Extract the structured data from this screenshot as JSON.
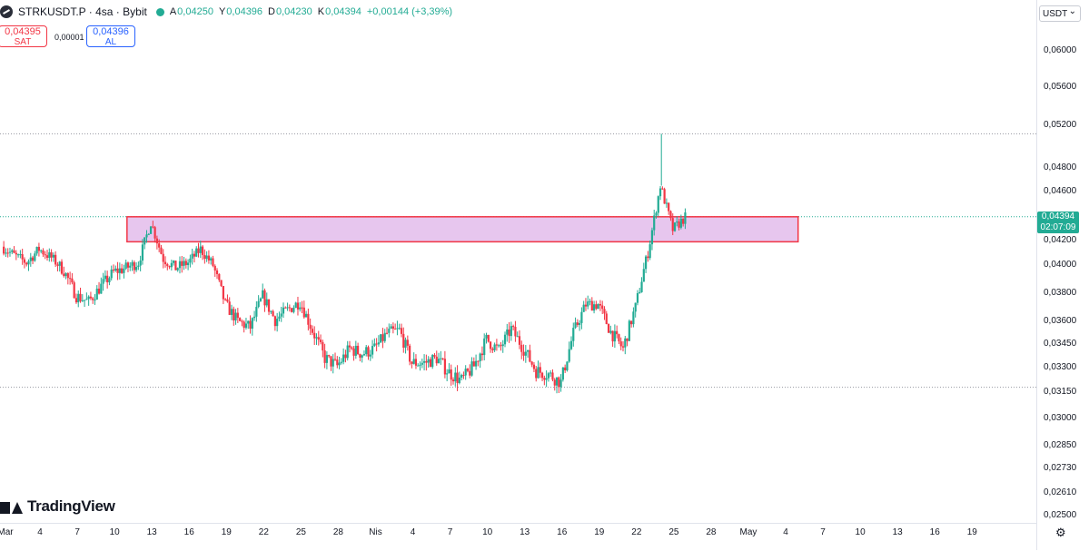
{
  "legend": {
    "symbol": "STRKUSDT.P · 4sa · Bybit",
    "open_label": "A",
    "open": "0,04250",
    "high_label": "Y",
    "high": "0,04396",
    "low_label": "D",
    "low": "0,04230",
    "close_label": "K",
    "close": "0,04394",
    "change": "+0,00144 (+3,39%)"
  },
  "trade": {
    "sell_price": "0,04395",
    "sell_label": "SAT",
    "spread": "0,00001",
    "buy_price": "0,04396",
    "buy_label": "AL"
  },
  "currency": "USDT",
  "last_price": {
    "value": "0,04394",
    "countdown": "02:07:09"
  },
  "branding": "TradingView",
  "colors": {
    "up": "#22ab94",
    "down": "#f23645",
    "zone_fill": "#e7c6ee",
    "zone_border": "#f23645"
  },
  "chart_data": {
    "type": "candlestick",
    "price_scale": {
      "ticks": [
        0.06,
        0.056,
        0.052,
        0.048,
        0.046,
        0.042,
        0.04,
        0.038,
        0.036,
        0.0345,
        0.033,
        0.0315,
        0.03,
        0.0285,
        0.0273,
        0.0261,
        0.025
      ],
      "tick_labels": [
        "0,06000",
        "0,05600",
        "0,05200",
        "0,04800",
        "0,04600",
        "0,04200",
        "0,04000",
        "0,03800",
        "0,03600",
        "0,03450",
        "0,03300",
        "0,03150",
        "0,03000",
        "0,02850",
        "0,02730",
        "0,02610",
        "0,02500"
      ]
    },
    "time_scale": {
      "labels": [
        "Mar",
        "4",
        "7",
        "10",
        "13",
        "16",
        "19",
        "22",
        "25",
        "28",
        "Nis",
        "4",
        "7",
        "10",
        "13",
        "16",
        "19",
        "22",
        "25",
        "28",
        "May",
        "4",
        "7",
        "10",
        "13",
        "16",
        "19"
      ]
    },
    "range": {
      "start": "2025-03-01",
      "end": "2025-05-22",
      "ymin": 0.025,
      "ymax": 0.06
    },
    "zone": {
      "from": "2025-03-11",
      "to": "2025-05-04",
      "top": 0.04394,
      "bottom": 0.0419
    },
    "horizontal_lines": [
      0.0512,
      0.04394,
      0.0318
    ],
    "path": [
      [
        "2025-03-01",
        0.0415
      ],
      [
        "2025-03-02",
        0.0408
      ],
      [
        "2025-03-03",
        0.0402
      ],
      [
        "2025-03-04",
        0.0413
      ],
      [
        "2025-03-05",
        0.0406
      ],
      [
        "2025-03-06",
        0.0396
      ],
      [
        "2025-03-07",
        0.0378
      ],
      [
        "2025-03-08",
        0.0374
      ],
      [
        "2025-03-09",
        0.0385
      ],
      [
        "2025-03-10",
        0.0395
      ],
      [
        "2025-03-11",
        0.0398
      ],
      [
        "2025-03-12",
        0.0402
      ],
      [
        "2025-03-13",
        0.0435
      ],
      [
        "2025-03-14",
        0.0405
      ],
      [
        "2025-03-15",
        0.0398
      ],
      [
        "2025-03-16",
        0.0402
      ],
      [
        "2025-03-17",
        0.0413
      ],
      [
        "2025-03-18",
        0.04
      ],
      [
        "2025-03-19",
        0.0372
      ],
      [
        "2025-03-20",
        0.036
      ],
      [
        "2025-03-21",
        0.0356
      ],
      [
        "2025-03-22",
        0.0378
      ],
      [
        "2025-03-23",
        0.0361
      ],
      [
        "2025-03-24",
        0.0368
      ],
      [
        "2025-03-25",
        0.0374
      ],
      [
        "2025-03-26",
        0.0354
      ],
      [
        "2025-03-27",
        0.0336
      ],
      [
        "2025-03-28",
        0.0331
      ],
      [
        "2025-03-29",
        0.0342
      ],
      [
        "2025-03-30",
        0.0339
      ],
      [
        "2025-03-31",
        0.0342
      ],
      [
        "2025-04-01",
        0.0352
      ],
      [
        "2025-04-02",
        0.0354
      ],
      [
        "2025-04-03",
        0.0333
      ],
      [
        "2025-04-04",
        0.0333
      ],
      [
        "2025-04-05",
        0.0336
      ],
      [
        "2025-04-06",
        0.0327
      ],
      [
        "2025-04-07",
        0.0322
      ],
      [
        "2025-04-08",
        0.0331
      ],
      [
        "2025-04-09",
        0.0348
      ],
      [
        "2025-04-10",
        0.0341
      ],
      [
        "2025-04-11",
        0.0355
      ],
      [
        "2025-04-12",
        0.0342
      ],
      [
        "2025-04-13",
        0.0328
      ],
      [
        "2025-04-14",
        0.0326
      ],
      [
        "2025-04-15",
        0.0321
      ],
      [
        "2025-04-16",
        0.0352
      ],
      [
        "2025-04-17",
        0.0372
      ],
      [
        "2025-04-18",
        0.0372
      ],
      [
        "2025-04-19",
        0.0353
      ],
      [
        "2025-04-20",
        0.0342
      ],
      [
        "2025-04-21",
        0.037
      ],
      [
        "2025-04-22",
        0.041
      ],
      [
        "2025-04-23",
        0.0465
      ],
      [
        "2025-04-24",
        0.0429
      ],
      [
        "2025-04-25",
        0.0439
      ]
    ]
  }
}
